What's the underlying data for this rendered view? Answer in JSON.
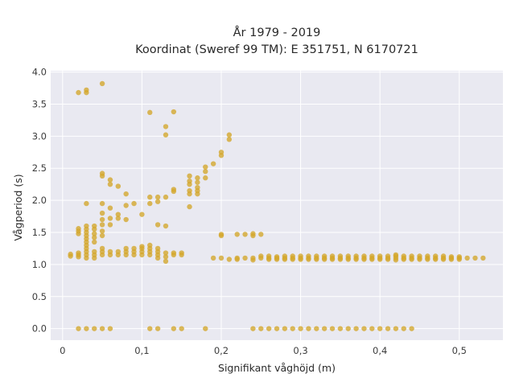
{
  "chart_data": {
    "type": "scatter",
    "title": "År 1979 - 2019",
    "subtitle": "Koordinat (Sweref 99 TM): E 351751, N 6170721",
    "xlabel": "Signifikant våghöjd (m)",
    "ylabel": "Vågperiod (s)",
    "xlim": [
      -0.015,
      0.555
    ],
    "ylim": [
      -0.18,
      4.02
    ],
    "x_ticks": [
      0,
      0.1,
      0.2,
      0.3,
      0.4,
      0.5
    ],
    "x_tick_labels": [
      "0",
      "0,1",
      "0,2",
      "0,3",
      "0,4",
      "0,5"
    ],
    "y_ticks": [
      0,
      0.5,
      1,
      1.5,
      2,
      2.5,
      3,
      3.5,
      4
    ],
    "y_tick_labels": [
      "0.0",
      "0.5",
      "1.0",
      "1.5",
      "2.0",
      "2.5",
      "3.0",
      "3.5",
      "4.0"
    ],
    "grid": true,
    "background_color": "#e9e9f1",
    "grid_color": "#ffffff",
    "marker_color": "#d4a62a",
    "points": [
      [
        0.01,
        1.13
      ],
      [
        0.01,
        1.16
      ],
      [
        0.02,
        1.12
      ],
      [
        0.02,
        1.15
      ],
      [
        0.02,
        1.18
      ],
      [
        0.02,
        1.48
      ],
      [
        0.02,
        1.52
      ],
      [
        0.02,
        1.56
      ],
      [
        0.03,
        1.1
      ],
      [
        0.03,
        1.15
      ],
      [
        0.03,
        1.2
      ],
      [
        0.03,
        1.25
      ],
      [
        0.03,
        1.3
      ],
      [
        0.03,
        1.35
      ],
      [
        0.03,
        1.4
      ],
      [
        0.03,
        1.45
      ],
      [
        0.03,
        1.5
      ],
      [
        0.03,
        1.55
      ],
      [
        0.03,
        1.6
      ],
      [
        0.03,
        1.95
      ],
      [
        0.03,
        3.68
      ],
      [
        0.03,
        3.72
      ],
      [
        0.02,
        3.68
      ],
      [
        0.04,
        1.1
      ],
      [
        0.04,
        1.15
      ],
      [
        0.04,
        1.2
      ],
      [
        0.04,
        1.35
      ],
      [
        0.04,
        1.42
      ],
      [
        0.04,
        1.48
      ],
      [
        0.04,
        1.55
      ],
      [
        0.04,
        1.6
      ],
      [
        0.05,
        1.15
      ],
      [
        0.05,
        1.2
      ],
      [
        0.05,
        1.25
      ],
      [
        0.05,
        1.45
      ],
      [
        0.05,
        1.52
      ],
      [
        0.05,
        1.62
      ],
      [
        0.05,
        1.7
      ],
      [
        0.05,
        1.8
      ],
      [
        0.05,
        1.95
      ],
      [
        0.05,
        2.38
      ],
      [
        0.05,
        2.42
      ],
      [
        0.05,
        3.82
      ],
      [
        0.06,
        1.15
      ],
      [
        0.06,
        1.2
      ],
      [
        0.06,
        1.62
      ],
      [
        0.06,
        1.72
      ],
      [
        0.06,
        1.88
      ],
      [
        0.06,
        2.25
      ],
      [
        0.06,
        2.32
      ],
      [
        0.07,
        1.15
      ],
      [
        0.07,
        1.2
      ],
      [
        0.07,
        1.72
      ],
      [
        0.07,
        1.78
      ],
      [
        0.07,
        2.22
      ],
      [
        0.08,
        1.15
      ],
      [
        0.08,
        1.2
      ],
      [
        0.08,
        1.25
      ],
      [
        0.08,
        1.7
      ],
      [
        0.08,
        1.92
      ],
      [
        0.08,
        2.1
      ],
      [
        0.09,
        1.15
      ],
      [
        0.09,
        1.2
      ],
      [
        0.09,
        1.25
      ],
      [
        0.09,
        1.95
      ],
      [
        0.1,
        1.15
      ],
      [
        0.1,
        1.2
      ],
      [
        0.1,
        1.25
      ],
      [
        0.1,
        1.28
      ],
      [
        0.1,
        1.78
      ],
      [
        0.11,
        1.15
      ],
      [
        0.11,
        1.2
      ],
      [
        0.11,
        1.25
      ],
      [
        0.11,
        1.3
      ],
      [
        0.11,
        1.95
      ],
      [
        0.11,
        2.05
      ],
      [
        0.11,
        3.37
      ],
      [
        0.12,
        1.1
      ],
      [
        0.12,
        1.15
      ],
      [
        0.12,
        1.2
      ],
      [
        0.12,
        1.25
      ],
      [
        0.12,
        1.62
      ],
      [
        0.12,
        1.98
      ],
      [
        0.12,
        2.05
      ],
      [
        0.13,
        1.05
      ],
      [
        0.13,
        1.12
      ],
      [
        0.13,
        1.18
      ],
      [
        0.13,
        1.6
      ],
      [
        0.13,
        2.05
      ],
      [
        0.13,
        3.02
      ],
      [
        0.13,
        3.15
      ],
      [
        0.14,
        1.15
      ],
      [
        0.14,
        1.18
      ],
      [
        0.14,
        2.14
      ],
      [
        0.14,
        2.17
      ],
      [
        0.14,
        3.38
      ],
      [
        0.15,
        1.15
      ],
      [
        0.15,
        1.18
      ],
      [
        0.16,
        1.9
      ],
      [
        0.16,
        2.1
      ],
      [
        0.16,
        2.15
      ],
      [
        0.16,
        2.25
      ],
      [
        0.16,
        2.3
      ],
      [
        0.16,
        2.38
      ],
      [
        0.17,
        2.1
      ],
      [
        0.17,
        2.15
      ],
      [
        0.17,
        2.2
      ],
      [
        0.17,
        2.28
      ],
      [
        0.17,
        2.35
      ],
      [
        0.18,
        2.35
      ],
      [
        0.18,
        2.45
      ],
      [
        0.18,
        2.52
      ],
      [
        0.19,
        1.1
      ],
      [
        0.19,
        2.57
      ],
      [
        0.2,
        1.1
      ],
      [
        0.2,
        1.45
      ],
      [
        0.2,
        1.47
      ],
      [
        0.2,
        2.7
      ],
      [
        0.2,
        2.75
      ],
      [
        0.21,
        1.08
      ],
      [
        0.21,
        2.95
      ],
      [
        0.21,
        3.02
      ],
      [
        0.22,
        1.1
      ],
      [
        0.22,
        1.08
      ],
      [
        0.22,
        1.47
      ],
      [
        0.23,
        1.1
      ],
      [
        0.23,
        1.47
      ],
      [
        0.24,
        1.1
      ],
      [
        0.24,
        1.07
      ],
      [
        0.24,
        1.45
      ],
      [
        0.24,
        1.48
      ],
      [
        0.25,
        1.1
      ],
      [
        0.25,
        1.13
      ],
      [
        0.25,
        1.47
      ],
      [
        0.26,
        1.08
      ],
      [
        0.26,
        1.1
      ],
      [
        0.26,
        1.13
      ],
      [
        0.27,
        1.08
      ],
      [
        0.27,
        1.1
      ],
      [
        0.27,
        1.12
      ],
      [
        0.28,
        1.08
      ],
      [
        0.28,
        1.1
      ],
      [
        0.28,
        1.13
      ],
      [
        0.29,
        1.08
      ],
      [
        0.29,
        1.1
      ],
      [
        0.29,
        1.13
      ],
      [
        0.3,
        1.08
      ],
      [
        0.3,
        1.1
      ],
      [
        0.3,
        1.13
      ],
      [
        0.31,
        1.08
      ],
      [
        0.31,
        1.1
      ],
      [
        0.31,
        1.13
      ],
      [
        0.32,
        1.08
      ],
      [
        0.32,
        1.1
      ],
      [
        0.32,
        1.13
      ],
      [
        0.33,
        1.08
      ],
      [
        0.33,
        1.1
      ],
      [
        0.33,
        1.13
      ],
      [
        0.34,
        1.08
      ],
      [
        0.34,
        1.1
      ],
      [
        0.34,
        1.13
      ],
      [
        0.35,
        1.08
      ],
      [
        0.35,
        1.1
      ],
      [
        0.35,
        1.13
      ],
      [
        0.36,
        1.08
      ],
      [
        0.36,
        1.1
      ],
      [
        0.36,
        1.13
      ],
      [
        0.37,
        1.08
      ],
      [
        0.37,
        1.1
      ],
      [
        0.37,
        1.13
      ],
      [
        0.38,
        1.08
      ],
      [
        0.38,
        1.1
      ],
      [
        0.38,
        1.13
      ],
      [
        0.39,
        1.08
      ],
      [
        0.39,
        1.1
      ],
      [
        0.39,
        1.13
      ],
      [
        0.4,
        1.08
      ],
      [
        0.4,
        1.1
      ],
      [
        0.4,
        1.13
      ],
      [
        0.41,
        1.08
      ],
      [
        0.41,
        1.1
      ],
      [
        0.41,
        1.13
      ],
      [
        0.42,
        1.07
      ],
      [
        0.42,
        1.1
      ],
      [
        0.42,
        1.13
      ],
      [
        0.42,
        1.15
      ],
      [
        0.43,
        1.08
      ],
      [
        0.43,
        1.1
      ],
      [
        0.43,
        1.13
      ],
      [
        0.44,
        1.08
      ],
      [
        0.44,
        1.1
      ],
      [
        0.44,
        1.13
      ],
      [
        0.45,
        1.08
      ],
      [
        0.45,
        1.1
      ],
      [
        0.45,
        1.13
      ],
      [
        0.46,
        1.08
      ],
      [
        0.46,
        1.1
      ],
      [
        0.46,
        1.13
      ],
      [
        0.47,
        1.08
      ],
      [
        0.47,
        1.1
      ],
      [
        0.47,
        1.13
      ],
      [
        0.48,
        1.08
      ],
      [
        0.48,
        1.1
      ],
      [
        0.48,
        1.13
      ],
      [
        0.49,
        1.08
      ],
      [
        0.49,
        1.1
      ],
      [
        0.49,
        1.12
      ],
      [
        0.5,
        1.08
      ],
      [
        0.5,
        1.1
      ],
      [
        0.5,
        1.12
      ],
      [
        0.51,
        1.1
      ],
      [
        0.52,
        1.1
      ],
      [
        0.53,
        1.1
      ],
      [
        0.02,
        0
      ],
      [
        0.03,
        0
      ],
      [
        0.04,
        0
      ],
      [
        0.05,
        0
      ],
      [
        0.06,
        0
      ],
      [
        0.11,
        0
      ],
      [
        0.12,
        0
      ],
      [
        0.14,
        0
      ],
      [
        0.15,
        0
      ],
      [
        0.18,
        0
      ],
      [
        0.24,
        0
      ],
      [
        0.25,
        0
      ],
      [
        0.26,
        0
      ],
      [
        0.27,
        0
      ],
      [
        0.28,
        0
      ],
      [
        0.29,
        0
      ],
      [
        0.3,
        0
      ],
      [
        0.31,
        0
      ],
      [
        0.32,
        0
      ],
      [
        0.33,
        0
      ],
      [
        0.34,
        0
      ],
      [
        0.35,
        0
      ],
      [
        0.36,
        0
      ],
      [
        0.37,
        0
      ],
      [
        0.38,
        0
      ],
      [
        0.39,
        0
      ],
      [
        0.4,
        0
      ],
      [
        0.41,
        0
      ],
      [
        0.42,
        0
      ],
      [
        0.43,
        0
      ],
      [
        0.44,
        0
      ]
    ]
  }
}
